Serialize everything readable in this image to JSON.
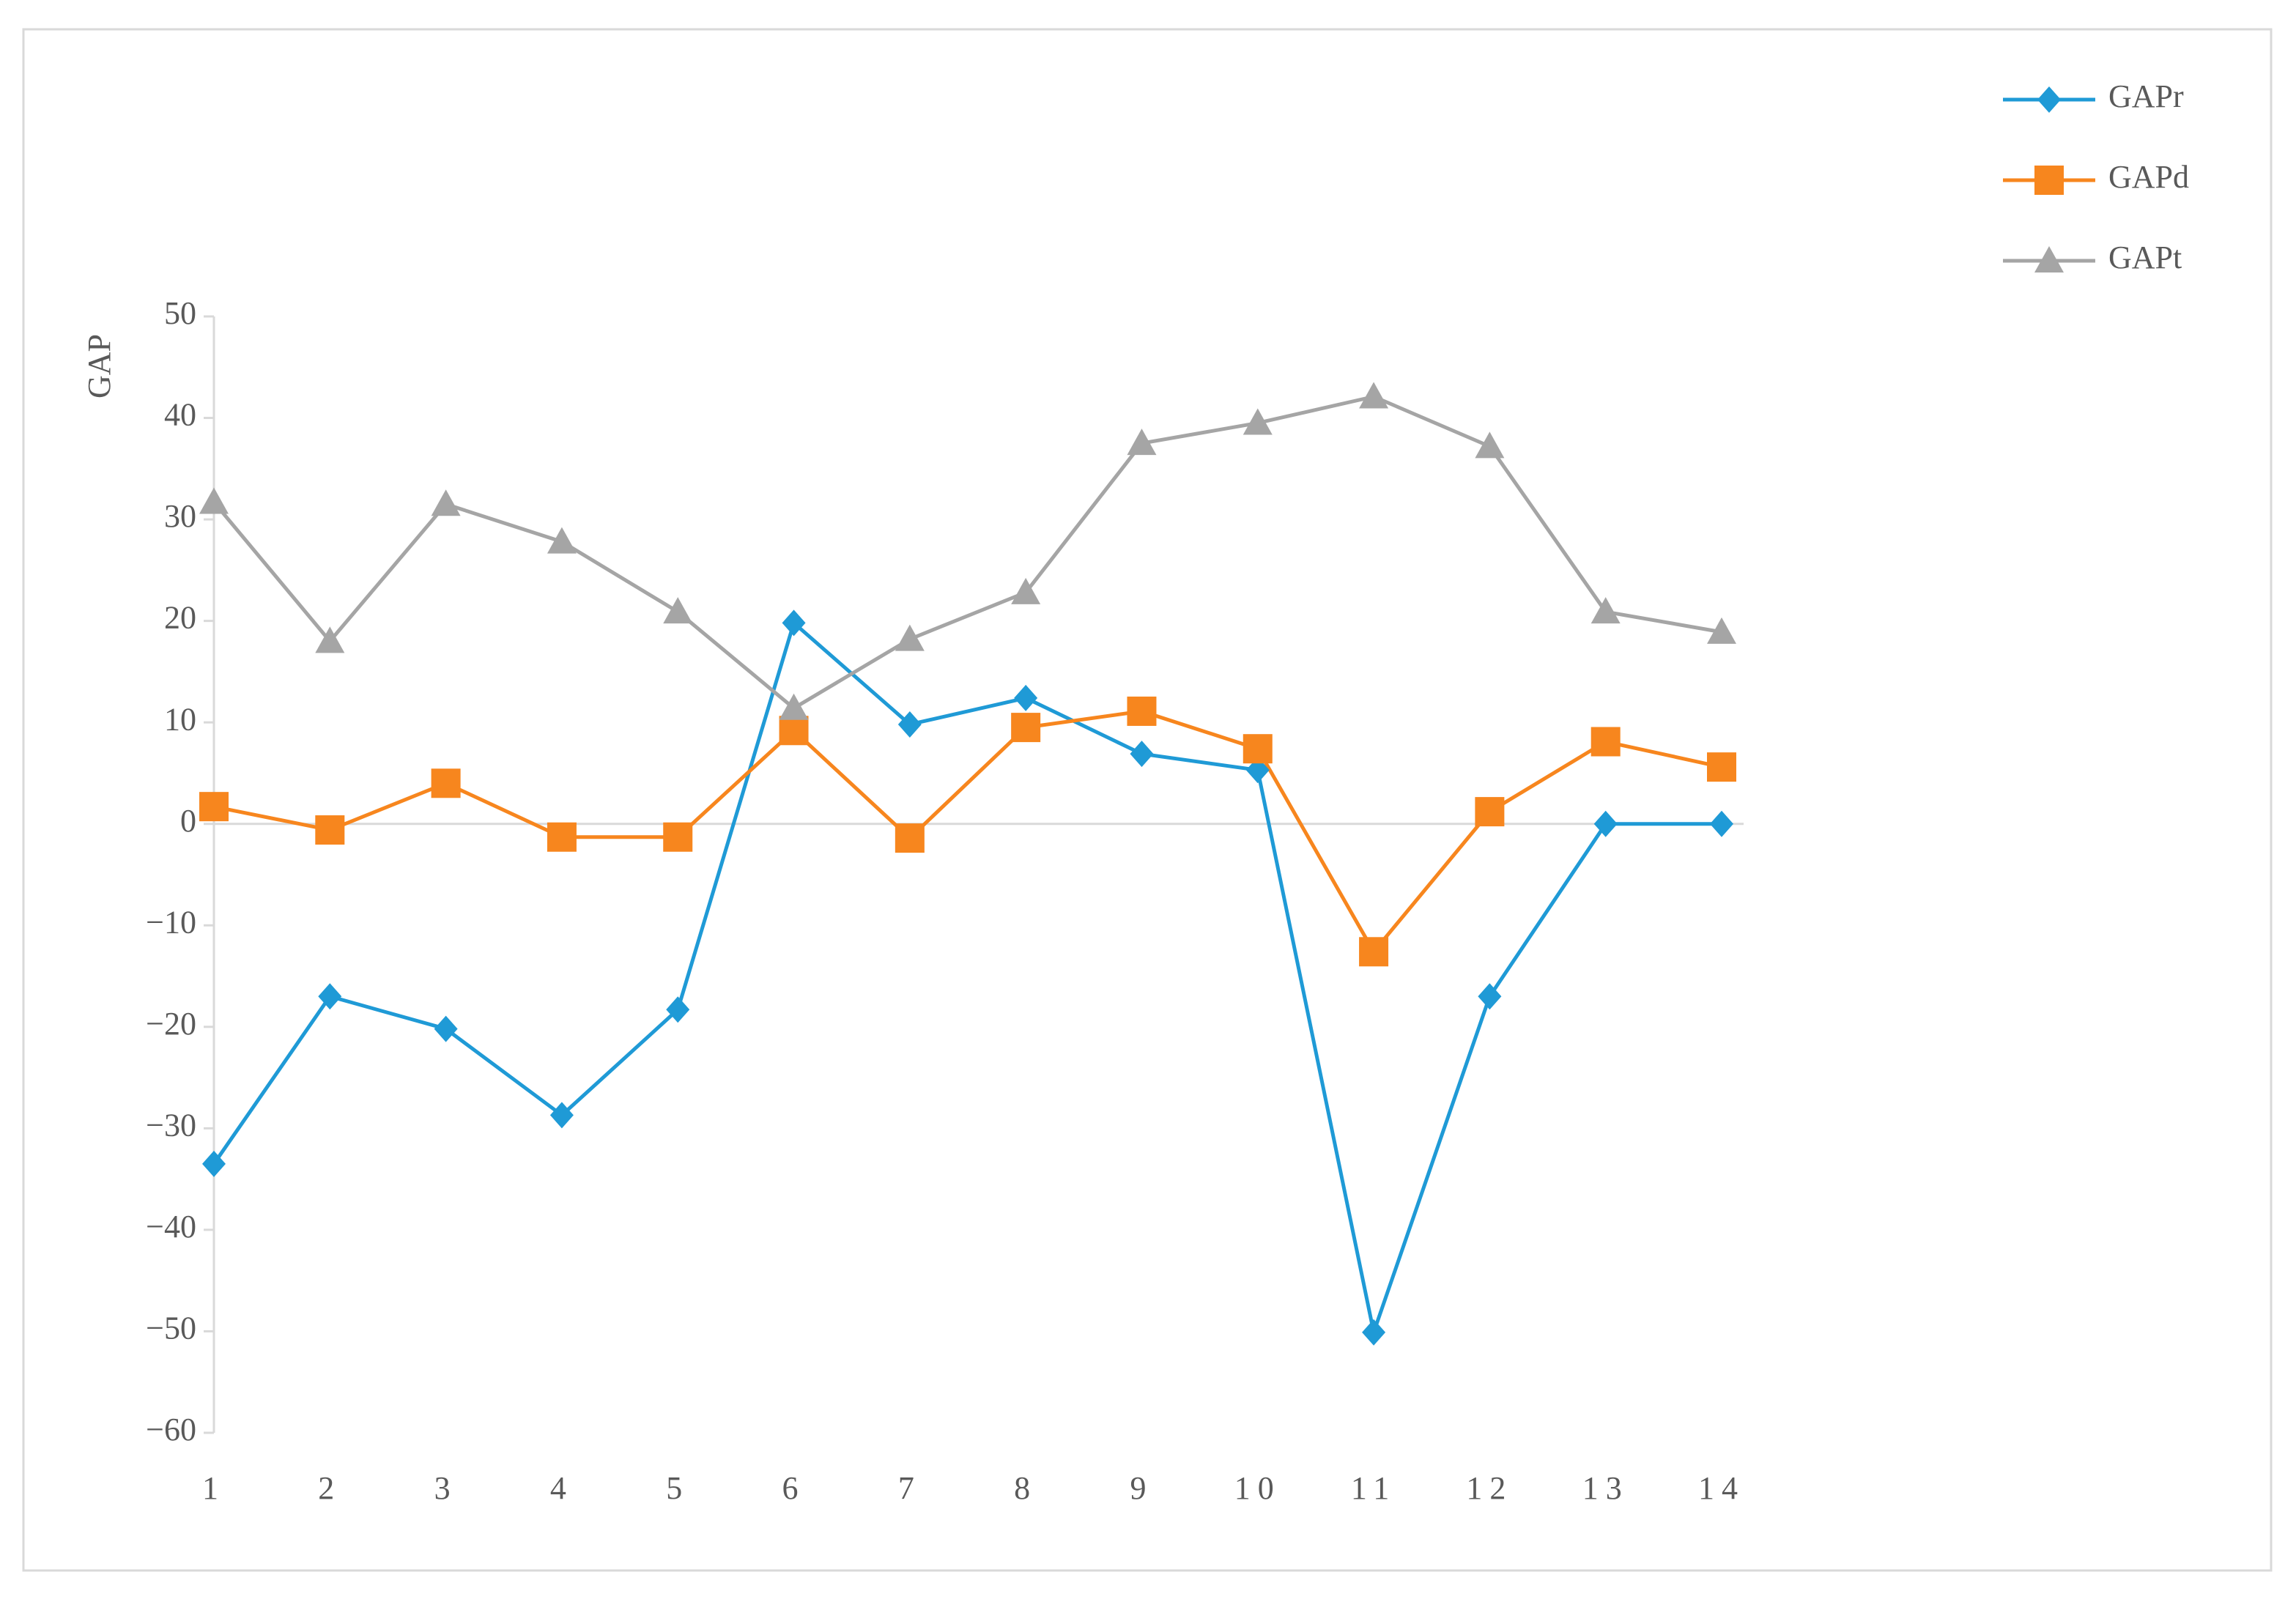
{
  "chart_data": {
    "type": "line",
    "y_label": "GAP",
    "categories": [
      "1",
      "2",
      "3",
      "4",
      "5",
      "6",
      "7",
      "8",
      "9",
      "10",
      "11",
      "12",
      "13",
      "14"
    ],
    "series": [
      {
        "name": "GAPr",
        "color": "#1f9ad6",
        "marker": "diamond",
        "values": [
          -33.5,
          -17,
          -20.2,
          -28.7,
          -18.3,
          19.8,
          9.8,
          12.4,
          6.9,
          5.3,
          -50.1,
          -17,
          0,
          0
        ]
      },
      {
        "name": "GAPd",
        "color": "#f7861e",
        "marker": "square",
        "values": [
          1.7,
          -0.6,
          4.0,
          -1.3,
          -1.3,
          9.2,
          -1.4,
          9.5,
          11.1,
          7.4,
          -12.6,
          1.2,
          8.1,
          5.6
        ]
      },
      {
        "name": "GAPt",
        "color": "#a5a5a5",
        "marker": "triangle",
        "values": [
          31.7,
          18.0,
          31.5,
          27.8,
          20.9,
          11.4,
          18.2,
          22.8,
          37.5,
          39.5,
          42.1,
          37.2,
          20.9,
          18.9
        ]
      }
    ],
    "ylim": [
      -60,
      50
    ],
    "yticks": [
      {
        "value": -60,
        "label": "−60"
      },
      {
        "value": -50,
        "label": "−50"
      },
      {
        "value": -40,
        "label": "−40"
      },
      {
        "value": -30,
        "label": "−30"
      },
      {
        "value": -20,
        "label": "−20"
      },
      {
        "value": -10,
        "label": "−10"
      },
      0,
      10,
      20,
      30,
      40,
      50
    ],
    "grid": false,
    "legend": "top-right"
  }
}
